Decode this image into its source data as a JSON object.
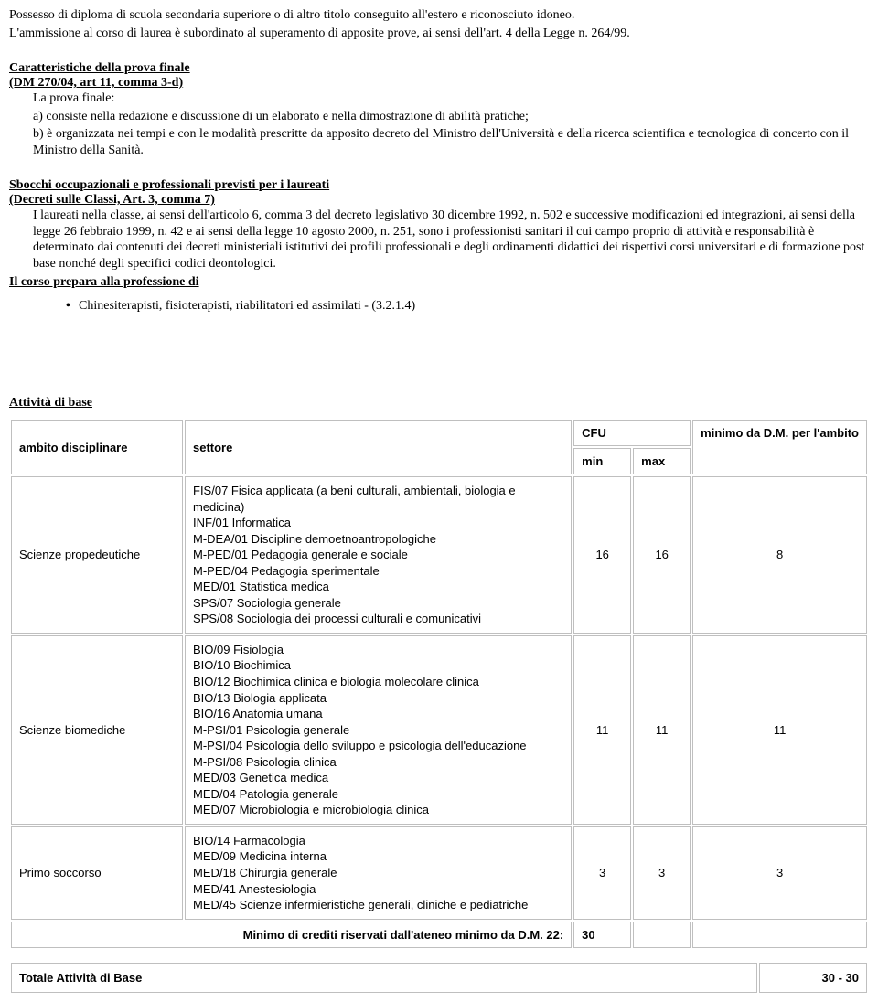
{
  "intro": {
    "line1": "Possesso di diploma di scuola secondaria superiore o di altro titolo conseguito all'estero e riconosciuto idoneo.",
    "line2": "L'ammissione al corso di laurea è subordinato al superamento di apposite prove, ai sensi dell'art. 4 della Legge n. 264/99."
  },
  "sec1": {
    "h1": "Caratteristiche della prova finale",
    "h2": "(DM 270/04, art 11, comma 3-d)",
    "p1": "La prova finale:",
    "p2": "a) consiste nella redazione e discussione di un elaborato e nella dimostrazione di abilità pratiche;",
    "p3": "b) è organizzata nei tempi e con le modalità prescritte da apposito decreto del Ministro dell'Università e della ricerca scientifica e tecnologica di concerto con il Ministro della Sanità."
  },
  "sec2": {
    "h1": "Sbocchi occupazionali e professionali previsti per i laureati",
    "h2": "(Decreti sulle Classi, Art. 3, comma 7)",
    "body": "I laureati nella classe, ai sensi dell'articolo 6, comma 3 del decreto legislativo 30 dicembre 1992, n. 502 e successive modificazioni ed integrazioni, ai sensi della legge 26 febbraio 1999, n. 42 e ai sensi della legge 10 agosto 2000, n. 251, sono i professionisti sanitari il cui campo proprio di attività e responsabilità è determinato dai contenuti dei decreti ministeriali istitutivi dei profili professionali e degli ordinamenti didattici dei rispettivi corsi universitari e di formazione post base nonché degli specifici codici deontologici."
  },
  "sec3": {
    "h": "Il corso prepara alla professione di",
    "bullet": "Chinesiterapisti, fisioterapisti, riabilitatori ed assimilati - (3.2.1.4)"
  },
  "tableTitle": "Attività di base",
  "headers": {
    "ambito": "ambito disciplinare",
    "settore": "settore",
    "cfu": "CFU",
    "min": "min",
    "max": "max",
    "minimo": "minimo da D.M. per l'ambito"
  },
  "rows": [
    {
      "ambito": "Scienze propedeutiche",
      "settori": [
        "FIS/07 Fisica applicata (a beni culturali, ambientali, biologia e medicina)",
        "INF/01 Informatica",
        "M-DEA/01 Discipline demoetnoantropologiche",
        "M-PED/01 Pedagogia generale e sociale",
        "M-PED/04 Pedagogia sperimentale",
        "MED/01 Statistica medica",
        "SPS/07 Sociologia generale",
        "SPS/08 Sociologia dei processi culturali e comunicativi"
      ],
      "min": "16",
      "max": "16",
      "dm": "8"
    },
    {
      "ambito": "Scienze biomediche",
      "settori": [
        "BIO/09 Fisiologia",
        "BIO/10 Biochimica",
        "BIO/12 Biochimica clinica e biologia molecolare clinica",
        "BIO/13 Biologia applicata",
        "BIO/16 Anatomia umana",
        "M-PSI/01 Psicologia generale",
        "M-PSI/04 Psicologia dello sviluppo e psicologia dell'educazione",
        "M-PSI/08 Psicologia clinica",
        "MED/03 Genetica medica",
        "MED/04 Patologia generale",
        "MED/07 Microbiologia e microbiologia clinica"
      ],
      "min": "11",
      "max": "11",
      "dm": "11"
    },
    {
      "ambito": "Primo soccorso",
      "settori": [
        "BIO/14 Farmacologia",
        "MED/09 Medicina interna",
        "MED/18 Chirurgia generale",
        "MED/41 Anestesiologia",
        "MED/45 Scienze infermieristiche generali, cliniche e pediatriche"
      ],
      "min": "3",
      "max": "3",
      "dm": "3"
    }
  ],
  "minimoRow": {
    "label": "Minimo di crediti riservati dall'ateneo minimo da D.M. 22:",
    "value": "30"
  },
  "totale": {
    "label": "Totale Attività di Base",
    "value": "30 - 30"
  }
}
